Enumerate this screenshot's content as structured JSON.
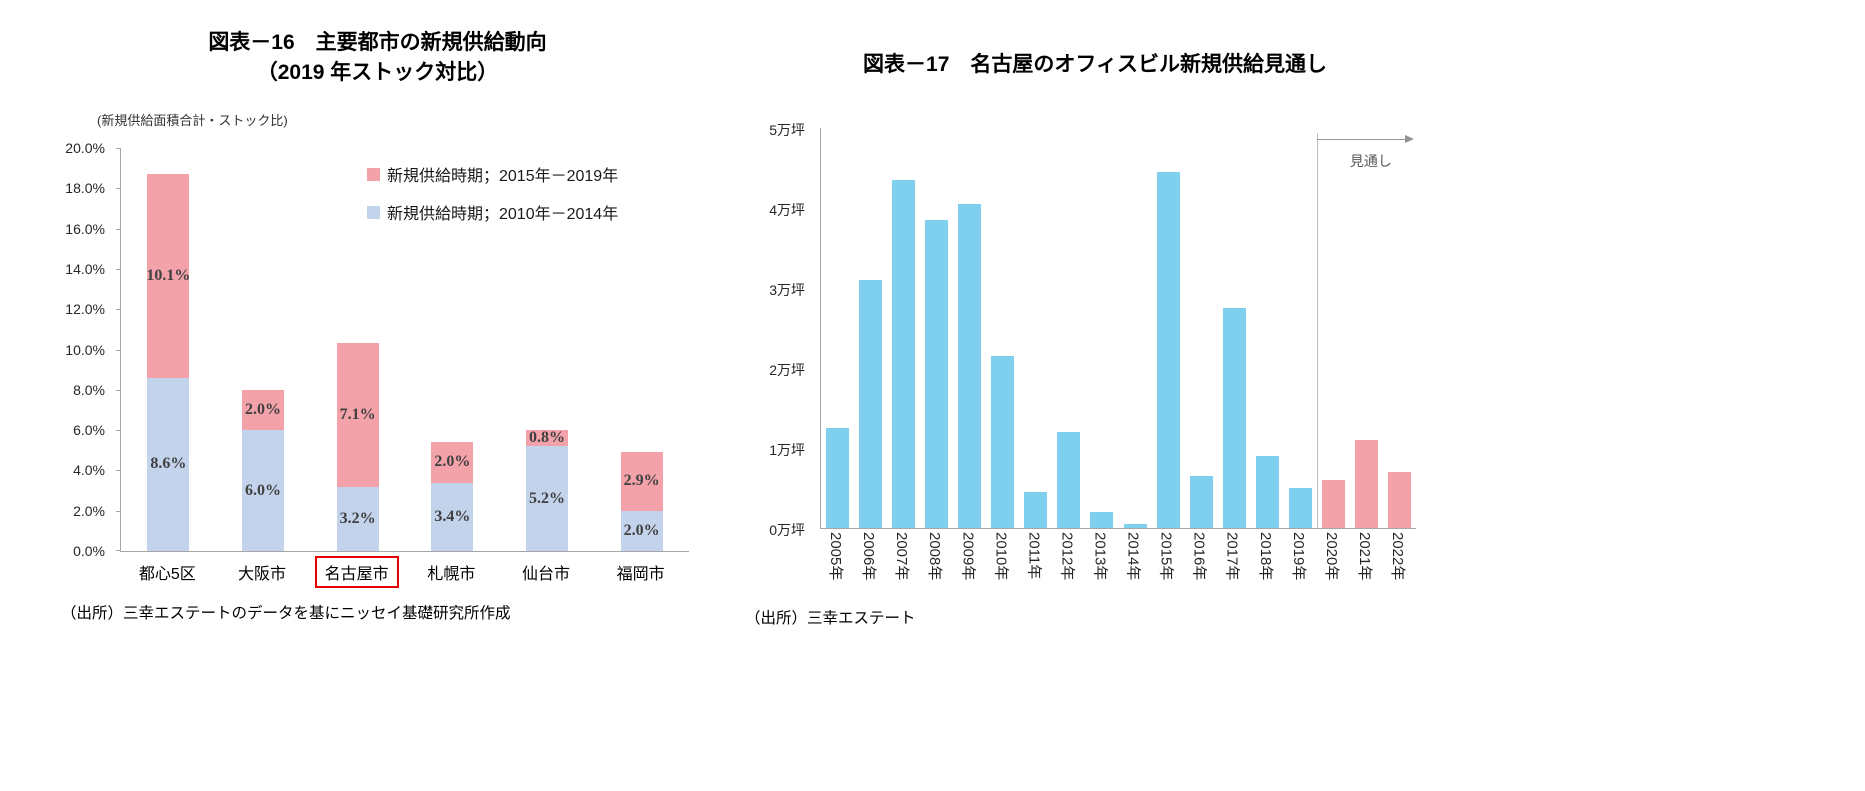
{
  "fig16": {
    "title_line1": "図表－16　主要都市の新規供給動向",
    "title_line2": "（2019 年ストック対比）",
    "axis_note": "(新規供給面積合計・ストック比)",
    "source": "（出所）三幸エステートのデータを基にニッセイ基礎研究所作成",
    "highlight_category": "名古屋市",
    "highlight_color": "#e60000",
    "legend": [
      {
        "label": "新規供給時期；2015年－2019年",
        "color": "#f3a2aa"
      },
      {
        "label": "新規供給時期；2010年－2014年",
        "color": "#c2d3eb"
      }
    ]
  },
  "fig17": {
    "title": "図表－17　名古屋のオフィスビル新規供給見通し",
    "forecast_label": "見通し",
    "source": "（出所）三幸エステート"
  },
  "chart_data": [
    {
      "type": "bar",
      "stacked": true,
      "title": "図表－16 主要都市の新規供給動向（2019 年ストック対比）",
      "ylabel": "(新規供給面積合計・ストック比)",
      "categories": [
        "都心5区",
        "大阪市",
        "名古屋市",
        "札幌市",
        "仙台市",
        "福岡市"
      ],
      "series": [
        {
          "name": "新規供給時期；2010年－2014年",
          "color": "#c2d3eb",
          "values": [
            8.6,
            6.0,
            3.2,
            3.4,
            5.2,
            2.0
          ]
        },
        {
          "name": "新規供給時期；2015年－2019年",
          "color": "#f3a2aa",
          "values": [
            10.1,
            2.0,
            7.1,
            2.0,
            0.8,
            2.9
          ]
        }
      ],
      "ylim": [
        0,
        20
      ],
      "ytick_step": 2,
      "ytick_suffix": "%",
      "grid": false,
      "legend_position": "top-right"
    },
    {
      "type": "bar",
      "title": "図表－17 名古屋のオフィスビル新規供給見通し",
      "categories": [
        "2005年",
        "2006年",
        "2007年",
        "2008年",
        "2009年",
        "2010年",
        "2011年",
        "2012年",
        "2013年",
        "2014年",
        "2015年",
        "2016年",
        "2017年",
        "2018年",
        "2019年",
        "2020年",
        "2021年",
        "2022年"
      ],
      "values": [
        1.25,
        3.1,
        4.35,
        3.85,
        4.05,
        2.15,
        0.45,
        1.2,
        0.2,
        0.05,
        4.45,
        0.65,
        2.75,
        0.9,
        0.5,
        0.6,
        1.1,
        0.7
      ],
      "unit": "万坪",
      "ylim": [
        0,
        5
      ],
      "ytick_labels": [
        "0万坪",
        "1万坪",
        "2万坪",
        "3万坪",
        "4万坪",
        "5万坪"
      ],
      "bar_color": "#7ed0ee",
      "forecast_color": "#f3a2aa",
      "forecast_start_index": 15,
      "forecast_label": "見通し",
      "grid": false
    }
  ]
}
